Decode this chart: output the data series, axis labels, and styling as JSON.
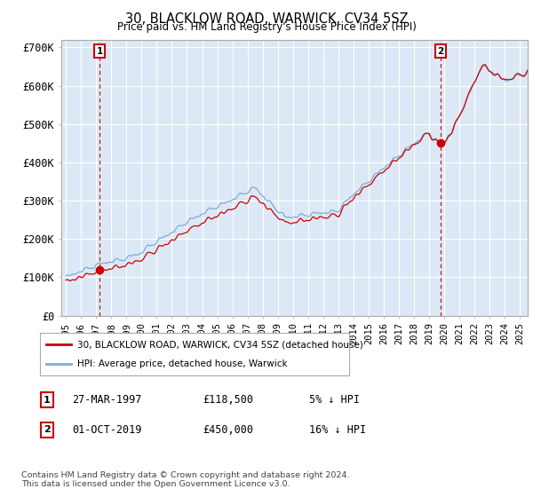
{
  "title": "30, BLACKLOW ROAD, WARWICK, CV34 5SZ",
  "subtitle": "Price paid vs. HM Land Registry's House Price Index (HPI)",
  "ylabel_ticks": [
    "£0",
    "£100K",
    "£200K",
    "£300K",
    "£400K",
    "£500K",
    "£600K",
    "£700K"
  ],
  "ylim": [
    0,
    720000
  ],
  "xlim_start": 1994.7,
  "xlim_end": 2025.5,
  "sale1_date": 1997.23,
  "sale1_price": 118500,
  "sale2_date": 2019.75,
  "sale2_price": 450000,
  "legend_line1": "30, BLACKLOW ROAD, WARWICK, CV34 5SZ (detached house)",
  "legend_line2": "HPI: Average price, detached house, Warwick",
  "annotation1_label": "1",
  "annotation1_date": "27-MAR-1997",
  "annotation1_price": "£118,500",
  "annotation1_note": "5% ↓ HPI",
  "annotation2_label": "2",
  "annotation2_date": "01-OCT-2019",
  "annotation2_price": "£450,000",
  "annotation2_note": "16% ↓ HPI",
  "footnote": "Contains HM Land Registry data © Crown copyright and database right 2024.\nThis data is licensed under the Open Government Licence v3.0.",
  "line_color_red": "#cc0000",
  "line_color_blue": "#7aabdb",
  "plot_bg_color": "#dce8f5",
  "background_color": "#ffffff",
  "grid_color": "#ffffff"
}
